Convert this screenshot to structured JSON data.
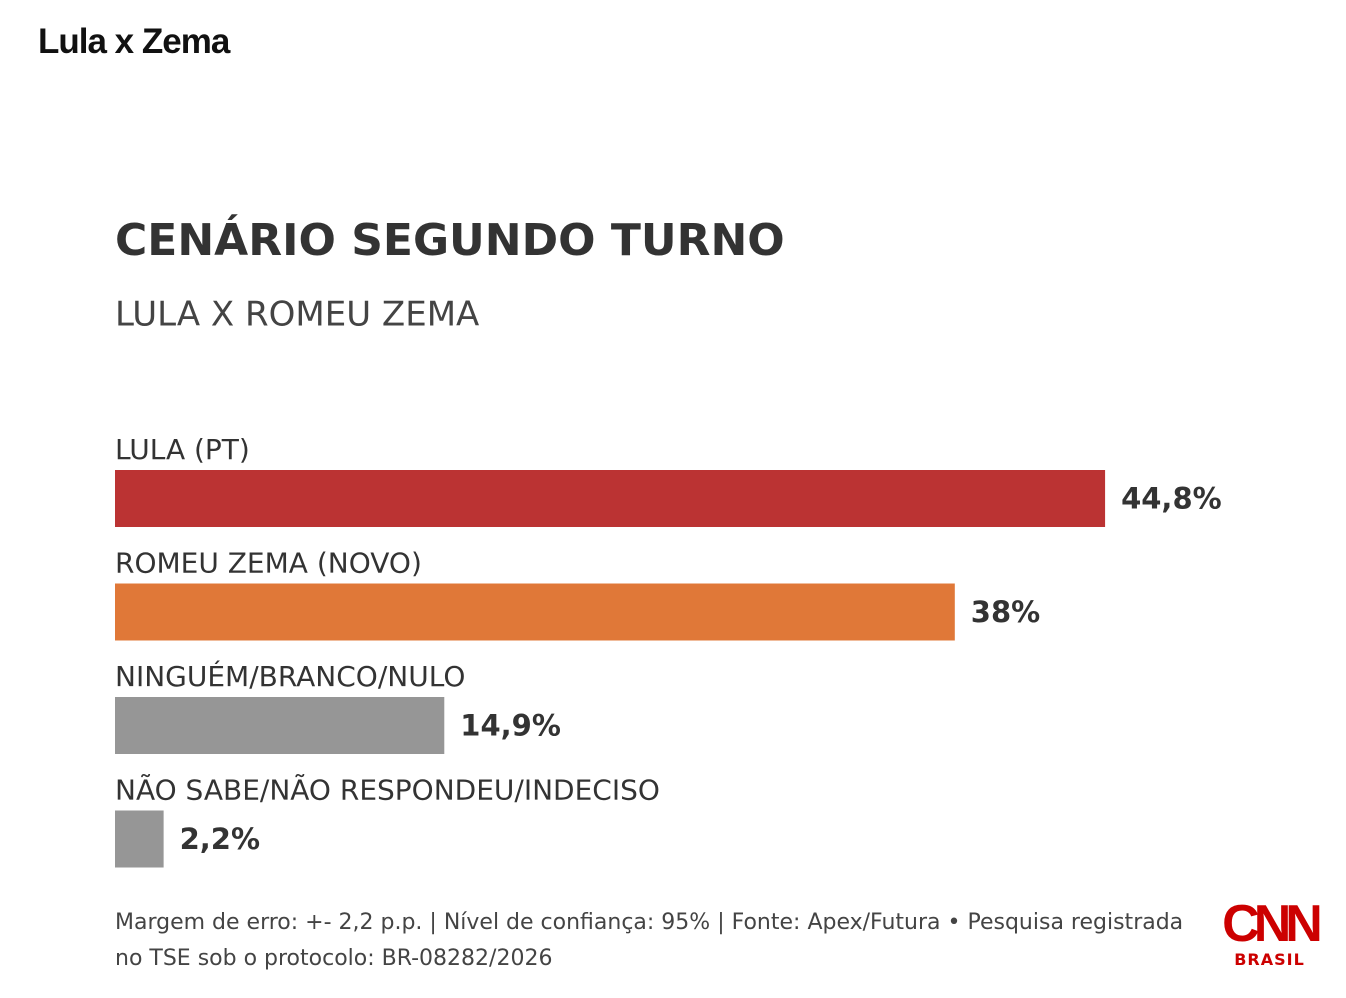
{
  "header": "Lula x Zema",
  "chart_data": {
    "type": "bar",
    "orientation": "horizontal",
    "title": "CENÁRIO SEGUNDO TURNO",
    "subtitle": "LULA X ROMEU ZEMA",
    "categories": [
      "LULA (PT)",
      "ROMEU ZEMA (NOVO)",
      "NINGUÉM/BRANCO/NULO",
      "NÃO SABE/NÃO RESPONDEU/INDECISO"
    ],
    "values": [
      44.8,
      38,
      14.9,
      2.2
    ],
    "value_labels": [
      "44,8%",
      "38%",
      "14,9%",
      "2,2%"
    ],
    "colors": [
      "#bb3333",
      "#e07838",
      "#969696",
      "#969696"
    ]
  },
  "note": "Margem de erro: +- 2,2 p.p. | Nível de confiança: 95% | Fonte: Apex/Futura • Pesquisa registrada no TSE sob o protocolo: BR-08282/2026",
  "logo": {
    "name": "CNN",
    "subname": "BRASIL"
  }
}
